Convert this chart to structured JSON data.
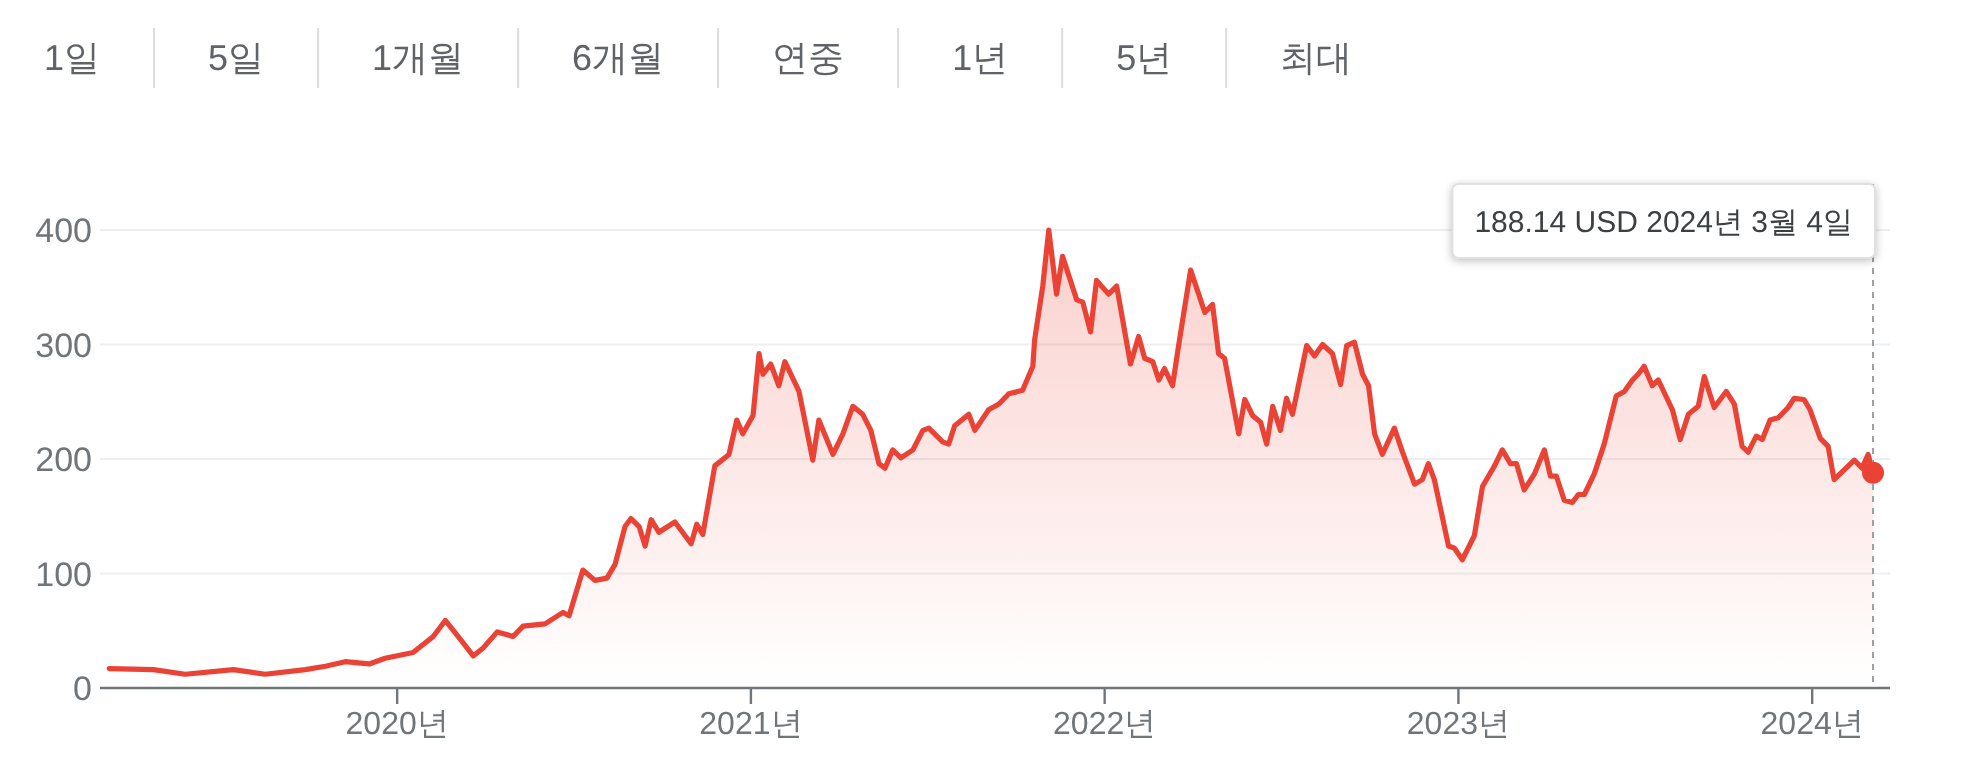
{
  "chart_data": {
    "type": "area",
    "color": "#ea4335",
    "x": [
      2019.186,
      2019.311,
      2019.401,
      2019.537,
      2019.627,
      2019.74,
      2019.797,
      2019.853,
      2019.921,
      2019.966,
      2020.045,
      2020.102,
      2020.136,
      2020.175,
      2020.215,
      2020.243,
      2020.283,
      2020.328,
      2020.356,
      2020.418,
      2020.469,
      2020.486,
      2020.525,
      2020.559,
      2020.593,
      2020.616,
      2020.644,
      2020.661,
      2020.684,
      2020.701,
      2020.718,
      2020.74,
      2020.785,
      2020.831,
      2020.847,
      2020.864,
      2020.898,
      2020.938,
      2020.96,
      2020.977,
      2021.006,
      2021.023,
      2021.034,
      2021.056,
      2021.079,
      2021.096,
      2021.136,
      2021.175,
      2021.192,
      2021.232,
      2021.26,
      2021.288,
      2021.316,
      2021.339,
      2021.362,
      2021.379,
      2021.401,
      2021.424,
      2021.458,
      2021.486,
      2021.503,
      2021.542,
      2021.559,
      2021.576,
      2021.616,
      2021.633,
      2021.672,
      2021.701,
      2021.729,
      2021.768,
      2021.797,
      2021.802,
      2021.825,
      2021.842,
      2021.864,
      2021.881,
      2021.921,
      2021.938,
      2021.96,
      2021.977,
      2022.011,
      2022.034,
      2022.073,
      2022.096,
      2022.113,
      2022.136,
      2022.153,
      2022.169,
      2022.192,
      2022.209,
      2022.243,
      2022.283,
      2022.305,
      2022.322,
      2022.339,
      2022.379,
      2022.396,
      2022.418,
      2022.441,
      2022.458,
      2022.475,
      2022.497,
      2022.514,
      2022.531,
      2022.571,
      2022.593,
      2022.616,
      2022.644,
      2022.667,
      2022.684,
      2022.706,
      2022.729,
      2022.746,
      2022.763,
      2022.785,
      2022.819,
      2022.842,
      2022.876,
      2022.898,
      2022.915,
      2022.932,
      2022.972,
      2022.989,
      2023.011,
      2023.045,
      2023.068,
      2023.102,
      2023.124,
      2023.147,
      2023.164,
      2023.186,
      2023.215,
      2023.243,
      2023.26,
      2023.277,
      2023.299,
      2023.322,
      2023.339,
      2023.356,
      2023.384,
      2023.412,
      2023.446,
      2023.469,
      2023.492,
      2023.508,
      2023.525,
      2023.548,
      2023.565,
      2023.605,
      2023.627,
      2023.65,
      2023.678,
      2023.695,
      2023.723,
      2023.757,
      2023.78,
      2023.802,
      2023.819,
      2023.842,
      2023.859,
      2023.881,
      2023.904,
      2023.932,
      2023.949,
      2023.977,
      2023.994,
      2024.023,
      2024.045,
      2024.062,
      2024.119,
      2024.141,
      2024.158,
      2024.172
    ],
    "values": [
      17,
      16,
      12,
      16,
      12,
      16,
      19,
      23,
      21,
      26,
      31,
      45,
      59,
      44,
      28,
      35,
      49,
      45,
      54,
      56,
      66,
      63,
      103,
      94,
      96,
      108,
      141,
      148,
      141,
      124,
      147,
      136,
      145,
      126,
      143,
      134,
      194,
      204,
      234,
      222,
      238,
      292,
      274,
      283,
      264,
      285,
      259,
      199,
      234,
      204,
      222,
      246,
      239,
      225,
      196,
      192,
      208,
      201,
      208,
      225,
      227,
      215,
      213,
      229,
      239,
      225,
      243,
      248,
      257,
      260,
      281,
      304,
      351,
      400,
      344,
      377,
      339,
      337,
      311,
      356,
      344,
      351,
      283,
      307,
      288,
      285,
      269,
      279,
      264,
      299,
      365,
      328,
      335,
      292,
      288,
      222,
      252,
      238,
      232,
      213,
      246,
      225,
      253,
      239,
      299,
      290,
      300,
      292,
      265,
      299,
      302,
      274,
      264,
      222,
      204,
      227,
      206,
      178,
      182,
      196,
      182,
      124,
      122,
      112,
      133,
      176,
      194,
      208,
      196,
      196,
      173,
      187,
      208,
      185,
      185,
      164,
      162,
      169,
      169,
      187,
      213,
      255,
      259,
      269,
      274,
      281,
      264,
      269,
      243,
      217,
      239,
      246,
      272,
      245,
      259,
      248,
      211,
      206,
      220,
      217,
      234,
      236,
      245,
      253,
      252,
      243,
      218,
      211,
      182,
      199,
      192,
      204,
      188
    ],
    "xlim": [
      2019.16,
      2024.22
    ],
    "ylim": [
      0,
      400
    ],
    "xticks": [
      {
        "value": 2020,
        "label": "2020년"
      },
      {
        "value": 2021,
        "label": "2021년"
      },
      {
        "value": 2022,
        "label": "2022년"
      },
      {
        "value": 2023,
        "label": "2023년"
      },
      {
        "value": 2024,
        "label": "2024년"
      }
    ],
    "yticks": [
      0,
      100,
      200,
      300,
      400
    ],
    "grid": "y",
    "ref_lines": [
      {
        "axis": "x",
        "value": 2024.172,
        "line_style": "dotted",
        "color": "#9aa0a6"
      }
    ],
    "annotations": [
      "1일",
      "5일",
      "1개월",
      "6개월",
      "연중",
      "1년",
      "5년",
      "최대",
      "188.14 USD  2024년 3월 4일"
    ]
  }
}
